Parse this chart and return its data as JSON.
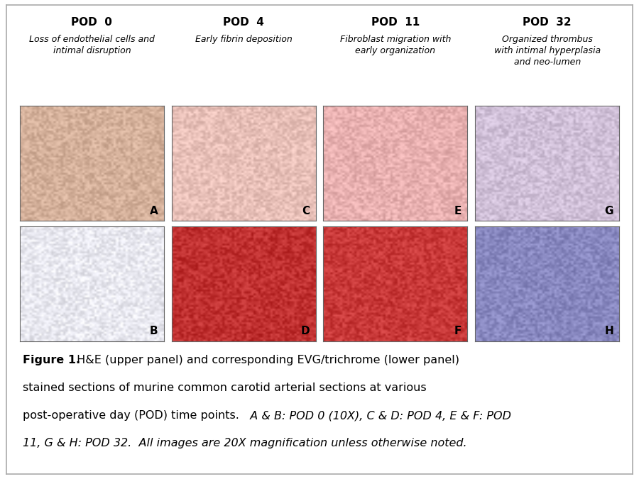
{
  "fig_width": 9.0,
  "fig_height": 6.75,
  "background_color": "#ffffff",
  "border_color": "#aaaaaa",
  "pod_titles": [
    "POD  0",
    "POD  4",
    "POD  11",
    "POD  32"
  ],
  "pod_subtitles": [
    "Loss of endothelial cells and\nintimal disruption",
    "Early fibrin deposition",
    "Fibroblast migration with\nearly organization",
    "Organized thrombus\nwith intimal hyperplasia\nand neo-lumen"
  ],
  "panel_order": [
    "A",
    "C",
    "E",
    "G",
    "B",
    "D",
    "F",
    "H"
  ],
  "top_colors": [
    "#d4b09a",
    "#e8c0b8",
    "#e8b0b0",
    "#d0c0d8"
  ],
  "bot_colors": [
    "#e8e8f0",
    "#c03030",
    "#c83838",
    "#8888c0"
  ],
  "title_fontsize": 11,
  "subtitle_fontsize": 9,
  "label_fontsize": 11,
  "caption_fontsize": 11.5,
  "caption_line1_bold": "Figure 1.",
  "caption_line1_normal": " H&E (upper panel) and corresponding EVG/trichrome (lower panel)",
  "caption_line2": "stained sections of murine common carotid arterial sections at various",
  "caption_line3_normal": "post-operative day (POD) time points.",
  "caption_line3_italic": "  A & B: POD 0 (10X), C & D: POD 4, E & F: POD",
  "caption_line4_italic": "11, G & H: POD 32.  All images are 20X magnification unless otherwise noted."
}
